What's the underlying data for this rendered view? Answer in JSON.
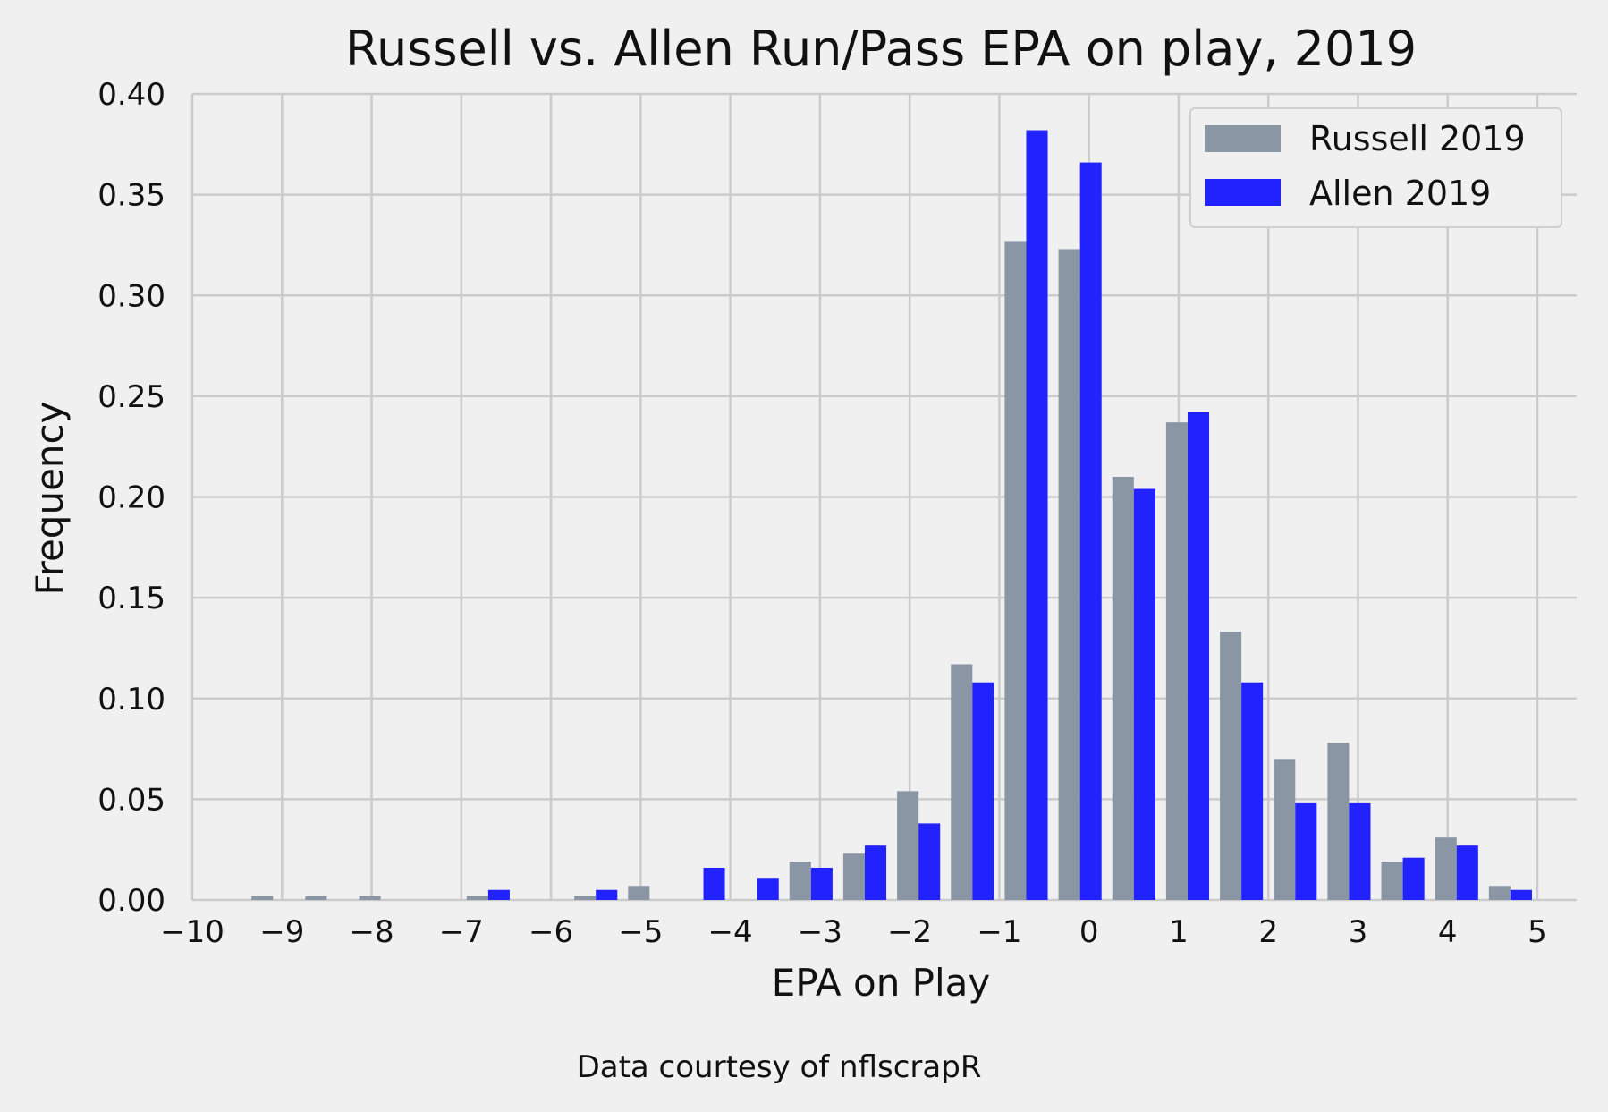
{
  "chart_data": {
    "type": "bar",
    "title": "Russell vs. Allen Run/Pass EPA on play, 2019",
    "xlabel": "EPA on Play",
    "ylabel": "Frequency",
    "caption": "Data courtesy of nflscrapR",
    "xlim": [
      -10,
      5
    ],
    "ylim": [
      0,
      0.4
    ],
    "xticks": [
      -10,
      -9,
      -8,
      -7,
      -6,
      -5,
      -4,
      -3,
      -2,
      -1,
      0,
      1,
      2,
      3,
      4,
      5
    ],
    "xtick_labels": [
      "−10",
      "−9",
      "−8",
      "−7",
      "−6",
      "−5",
      "−4",
      "−3",
      "−2",
      "−1",
      "0",
      "1",
      "2",
      "3",
      "4",
      "5"
    ],
    "yticks": [
      0.0,
      0.05,
      0.1,
      0.15,
      0.2,
      0.25,
      0.3,
      0.35,
      0.4
    ],
    "ytick_labels": [
      "0.00",
      "0.05",
      "0.10",
      "0.15",
      "0.20",
      "0.25",
      "0.30",
      "0.35",
      "0.40"
    ],
    "grid": true,
    "legend_position": "top-right",
    "bin_edges": [
      -10.0,
      -9.4,
      -8.8,
      -8.2,
      -7.6,
      -7.0,
      -6.4,
      -5.8,
      -5.2,
      -4.6,
      -4.0,
      -3.4,
      -2.8,
      -2.2,
      -1.6,
      -1.0,
      -0.4,
      0.2,
      0.8,
      1.4,
      2.0,
      2.6,
      3.2,
      3.8,
      4.4,
      5.0
    ],
    "series": [
      {
        "name": "Russell 2019",
        "color": "#8a96a4",
        "values": [
          0.0,
          0.002,
          0.002,
          0.002,
          0.0,
          0.002,
          0.0,
          0.002,
          0.007,
          0.0,
          0.0,
          0.019,
          0.023,
          0.054,
          0.117,
          0.327,
          0.323,
          0.21,
          0.237,
          0.133,
          0.07,
          0.078,
          0.019,
          0.031,
          0.007
        ]
      },
      {
        "name": "Allen 2019",
        "color": "#2222ff",
        "values": [
          0.0,
          0.0,
          0.0,
          0.0,
          0.0,
          0.005,
          0.0,
          0.005,
          0.0,
          0.016,
          0.011,
          0.016,
          0.027,
          0.038,
          0.108,
          0.382,
          0.366,
          0.204,
          0.242,
          0.108,
          0.048,
          0.048,
          0.021,
          0.027,
          0.005
        ]
      }
    ]
  }
}
